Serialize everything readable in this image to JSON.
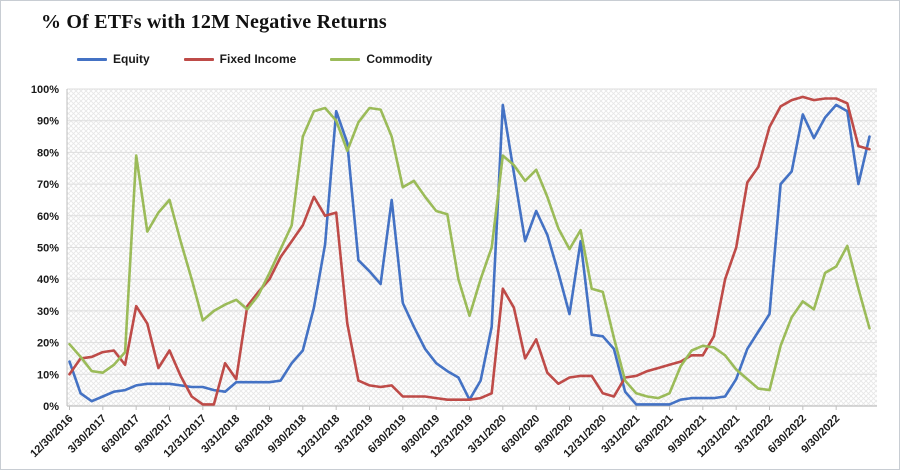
{
  "chart_data": {
    "type": "line",
    "title": "% Of ETFs with 12M Negative Returns",
    "xlabel": "",
    "ylabel": "",
    "ylim": [
      0,
      100
    ],
    "y_tick_step": 10,
    "y_tick_labels": [
      "0%",
      "10%",
      "20%",
      "30%",
      "40%",
      "50%",
      "60%",
      "70%",
      "80%",
      "90%",
      "100%"
    ],
    "grid": "horizontal",
    "plot_background": "diagonal-crosshatch",
    "legend_position": "top-left",
    "x_frequency": "monthly",
    "x_label_every": 3,
    "x_tick_labels": [
      "12/30/2016",
      "3/30/2017",
      "6/30/2017",
      "9/30/2017",
      "12/31/2017",
      "3/31/2018",
      "6/30/2018",
      "9/30/2018",
      "12/31/2018",
      "3/31/2019",
      "6/30/2019",
      "9/30/2019",
      "12/31/2019",
      "3/31/2020",
      "6/30/2020",
      "9/30/2020",
      "12/31/2020",
      "3/31/2021",
      "6/30/2021",
      "9/30/2021",
      "12/31/2021",
      "3/31/2022",
      "6/30/2022",
      "9/30/2022"
    ],
    "series": [
      {
        "name": "Equity",
        "color": "#4472C4",
        "values": [
          14,
          4,
          1.5,
          3,
          4.5,
          5,
          6.5,
          7,
          7,
          7,
          6.5,
          6,
          6,
          5,
          4.5,
          7.5,
          7.5,
          7.5,
          7.5,
          8,
          13.5,
          17.5,
          31,
          51,
          93,
          83,
          46,
          42.5,
          38.5,
          65,
          32.5,
          25,
          18,
          13.5,
          11,
          9,
          2,
          8,
          25,
          95,
          73.5,
          52,
          61.5,
          54,
          42,
          29,
          52,
          22.5,
          22,
          18,
          4.5,
          0.5,
          0.5,
          0.5,
          0.5,
          2,
          2.5,
          2.5,
          2.5,
          3,
          8.5,
          18,
          23.5,
          29,
          70,
          74,
          92,
          84.5,
          91,
          95,
          93,
          70,
          85
        ]
      },
      {
        "name": "Fixed Income",
        "color": "#BE4B48",
        "values": [
          10,
          15,
          15.5,
          17,
          17.5,
          13,
          31.5,
          26,
          12,
          17.5,
          9.5,
          3,
          0.5,
          0.5,
          13.5,
          8.5,
          31.5,
          36,
          40,
          47,
          52,
          57,
          66,
          60,
          61,
          26,
          8,
          6.5,
          6,
          6.5,
          3,
          3,
          3,
          2.5,
          2,
          2,
          2,
          2.5,
          4,
          37,
          31,
          15,
          21,
          10.5,
          7,
          9,
          9.5,
          9.5,
          4,
          3,
          9,
          9.5,
          11,
          12,
          13,
          14,
          16,
          16,
          22,
          40,
          50,
          70.5,
          75.5,
          88,
          94.5,
          96.5,
          97.5,
          96.5,
          97,
          97,
          95.5,
          82,
          81
        ]
      },
      {
        "name": "Commodity",
        "color": "#9BBB59",
        "values": [
          19.5,
          15.5,
          11,
          10.5,
          13,
          17,
          79,
          55,
          61,
          65,
          52,
          40,
          27,
          30,
          32,
          33.5,
          30.5,
          35,
          42,
          49.5,
          57,
          85,
          93,
          94,
          90,
          80.5,
          89.5,
          94,
          93.5,
          85,
          69,
          71,
          66,
          61.5,
          60.5,
          40,
          28.5,
          40,
          50,
          79,
          76,
          71,
          74.5,
          66,
          56,
          49.5,
          55.5,
          37,
          36,
          21.5,
          8,
          4,
          3,
          2.5,
          4,
          12.5,
          17.5,
          19,
          18.5,
          16,
          11.5,
          8.5,
          5.5,
          5,
          19,
          28,
          33,
          30.5,
          42,
          44,
          50.5,
          37,
          24.5
        ]
      }
    ],
    "colors": {
      "gridline": "#dedede",
      "axis": "#bfbfbf",
      "hatch": "#e7e7e7",
      "label": "#1a1a1a"
    }
  }
}
